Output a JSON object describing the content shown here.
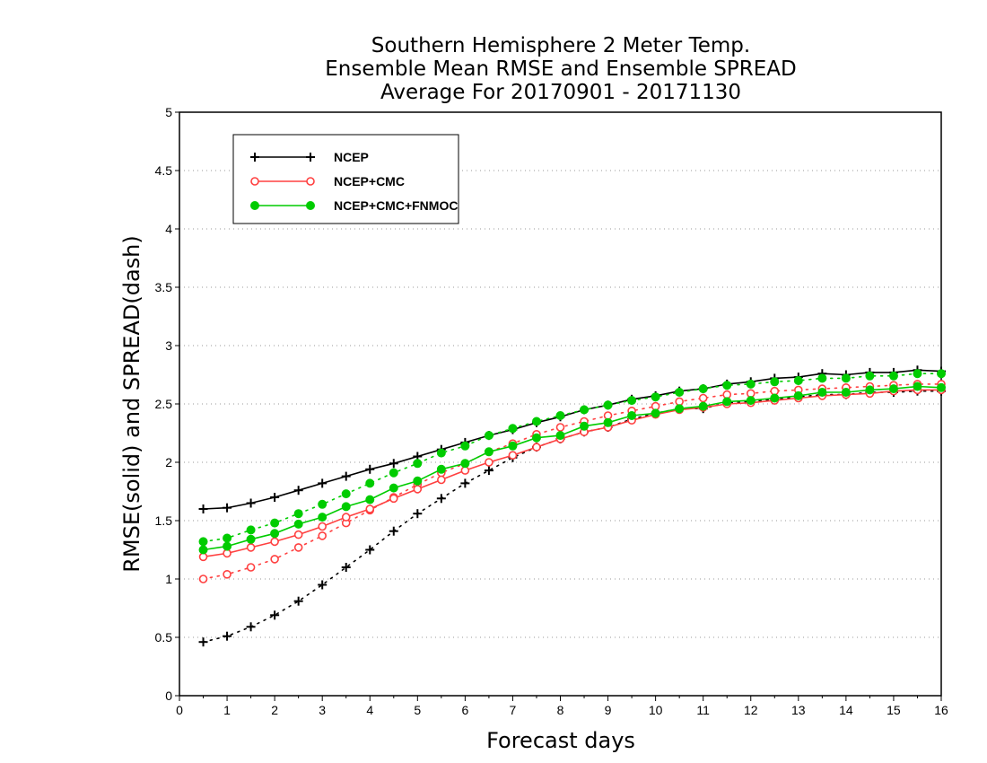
{
  "chart_data": {
    "type": "line",
    "title_lines": [
      "Southern Hemisphere 2 Meter Temp.",
      "Ensemble Mean RMSE and Ensemble SPREAD",
      "Average For 20170901 - 20171130"
    ],
    "xlabel": "Forecast days",
    "ylabel": "RMSE(solid) and SPREAD(dash)",
    "xlim": [
      0,
      16
    ],
    "ylim": [
      0,
      5
    ],
    "x_ticks": [
      "0",
      "1",
      "2",
      "3",
      "4",
      "5",
      "6",
      "7",
      "8",
      "9",
      "10",
      "11",
      "12",
      "13",
      "14",
      "15",
      "16"
    ],
    "y_ticks": [
      "0",
      "0.5",
      "1",
      "1.5",
      "2",
      "2.5",
      "3",
      "3.5",
      "4",
      "4.5",
      "5"
    ],
    "grid": "horizontal-dotted",
    "legend_position": "top-left",
    "x": [
      0.5,
      1,
      1.5,
      2,
      2.5,
      3,
      3.5,
      4,
      4.5,
      5,
      5.5,
      6,
      6.5,
      7,
      7.5,
      8,
      8.5,
      9,
      9.5,
      10,
      10.5,
      11,
      11.5,
      12,
      12.5,
      13,
      13.5,
      14,
      14.5,
      15,
      15.5,
      16
    ],
    "series": [
      {
        "name": "NCEP",
        "color": "#000000",
        "marker": "plus",
        "rmse": [
          1.6,
          1.61,
          1.65,
          1.7,
          1.76,
          1.82,
          1.88,
          1.94,
          1.99,
          2.05,
          2.11,
          2.17,
          2.23,
          2.28,
          2.34,
          2.39,
          2.45,
          2.49,
          2.54,
          2.57,
          2.61,
          2.63,
          2.67,
          2.69,
          2.72,
          2.73,
          2.76,
          2.75,
          2.77,
          2.77,
          2.79,
          2.78
        ],
        "spread": [
          0.46,
          0.51,
          0.59,
          0.69,
          0.81,
          0.95,
          1.1,
          1.25,
          1.41,
          1.56,
          1.69,
          1.82,
          1.93,
          2.04,
          2.13,
          2.2,
          2.26,
          2.3,
          2.37,
          2.42,
          2.46,
          2.46,
          2.51,
          2.52,
          2.54,
          2.56,
          2.58,
          2.58,
          2.6,
          2.6,
          2.61,
          2.61
        ]
      },
      {
        "name": "NCEP+CMC",
        "color": "#ff4040",
        "marker": "open-circle",
        "rmse": [
          1.19,
          1.22,
          1.27,
          1.32,
          1.38,
          1.45,
          1.53,
          1.6,
          1.69,
          1.77,
          1.85,
          1.93,
          2.0,
          2.06,
          2.13,
          2.2,
          2.26,
          2.3,
          2.36,
          2.41,
          2.45,
          2.47,
          2.5,
          2.51,
          2.53,
          2.55,
          2.57,
          2.58,
          2.59,
          2.61,
          2.62,
          2.62
        ],
        "spread": [
          1.0,
          1.04,
          1.1,
          1.17,
          1.27,
          1.37,
          1.48,
          1.59,
          1.7,
          1.81,
          1.91,
          1.99,
          2.09,
          2.16,
          2.24,
          2.3,
          2.35,
          2.4,
          2.44,
          2.48,
          2.52,
          2.55,
          2.58,
          2.59,
          2.61,
          2.62,
          2.63,
          2.64,
          2.65,
          2.66,
          2.67,
          2.67
        ]
      },
      {
        "name": "NCEP+CMC+FNMOC",
        "color": "#00cc00",
        "marker": "filled-circle",
        "rmse": [
          1.25,
          1.28,
          1.34,
          1.39,
          1.47,
          1.53,
          1.62,
          1.68,
          1.78,
          1.84,
          1.94,
          1.99,
          2.09,
          2.14,
          2.21,
          2.23,
          2.31,
          2.34,
          2.4,
          2.42,
          2.46,
          2.48,
          2.52,
          2.53,
          2.55,
          2.57,
          2.6,
          2.6,
          2.62,
          2.63,
          2.65,
          2.64
        ],
        "spread": [
          1.32,
          1.35,
          1.42,
          1.48,
          1.56,
          1.64,
          1.73,
          1.82,
          1.91,
          1.99,
          2.08,
          2.14,
          2.23,
          2.29,
          2.35,
          2.4,
          2.45,
          2.49,
          2.53,
          2.56,
          2.6,
          2.63,
          2.66,
          2.67,
          2.69,
          2.7,
          2.72,
          2.72,
          2.74,
          2.74,
          2.76,
          2.76
        ]
      }
    ]
  }
}
